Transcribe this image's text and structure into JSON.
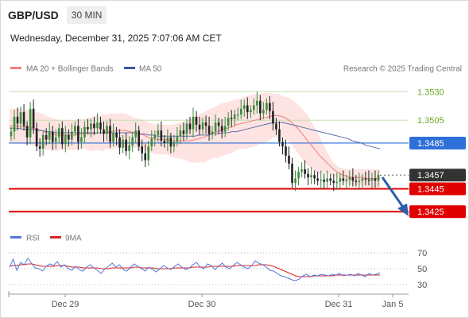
{
  "header": {
    "symbol": "GBP/USD",
    "timeframe": "30 MIN",
    "datetime": "Wednesday, December 31, 2025 7:07:06 AM CET"
  },
  "legend": {
    "ma20_label": "MA 20 + Bollinger Bands",
    "ma50_label": "MA 50",
    "source": "Research © 2025 Trading Central",
    "rsi_label": "RSI",
    "rsi_ma_label": "9MA"
  },
  "colors": {
    "green_level": "#66aa22",
    "blue_level": "#2e6fd8",
    "red_level": "#e00000",
    "current": "#333333",
    "candle_up": "#3c8c3c",
    "candle_down": "#222222",
    "bollinger_fill": "#fde3e1",
    "ma20": "#f08080",
    "ma50": "#5b6fa8",
    "rsi": "#5577dd",
    "rsi_ma": "#dd2222",
    "arrow": "#2a5fa8"
  },
  "chart_data": [
    {
      "type": "line",
      "title": "",
      "series": [
        {
          "name": "MA 20 + Bollinger Bands"
        },
        {
          "name": "MA 50"
        }
      ],
      "ohlc": {
        "start_index": 0,
        "end_index": 123,
        "note_open_close": "intraday candles read from chart"
      },
      "ylim": [
        1.3414,
        1.3542
      ],
      "levels": [
        {
          "value": "1.3530",
          "kind": "resistance"
        },
        {
          "value": "1.3505",
          "kind": "resistance"
        },
        {
          "value": "1.3485",
          "kind": "pivot"
        },
        {
          "value": "1.3457",
          "kind": "current"
        },
        {
          "value": "1.3445",
          "kind": "support"
        },
        {
          "value": "1.3425",
          "kind": "support"
        }
      ],
      "x_ticks": [
        "Dec 29",
        "Dec 30",
        "Dec 31",
        "Jan 5"
      ],
      "closes": [
        1.3495,
        1.3508,
        1.3502,
        1.3512,
        1.35,
        1.349,
        1.3515,
        1.3498,
        1.3482,
        1.348,
        1.3492,
        1.3488,
        1.3495,
        1.3486,
        1.349,
        1.3498,
        1.3484,
        1.3492,
        1.3488,
        1.3495,
        1.35,
        1.3486,
        1.349,
        1.3499,
        1.3497,
        1.3502,
        1.3498,
        1.3503,
        1.3497,
        1.3493,
        1.35,
        1.3486,
        1.3494,
        1.349,
        1.3481,
        1.3488,
        1.3478,
        1.3483,
        1.349,
        1.3496,
        1.3482,
        1.3476,
        1.347,
        1.3482,
        1.3489,
        1.3492,
        1.3496,
        1.3487,
        1.3485,
        1.349,
        1.3482,
        1.3486,
        1.3491,
        1.3496,
        1.3493,
        1.3502,
        1.3497,
        1.3508,
        1.3501,
        1.3497,
        1.3503,
        1.35,
        1.3493,
        1.3495,
        1.3503,
        1.35,
        1.3495,
        1.35,
        1.3507,
        1.3506,
        1.351,
        1.351,
        1.3515,
        1.3518,
        1.3512,
        1.3514,
        1.3518,
        1.3522,
        1.3511,
        1.3514,
        1.352,
        1.3513,
        1.3502,
        1.3497,
        1.3486,
        1.3482,
        1.3474,
        1.3467,
        1.345,
        1.3454,
        1.346,
        1.3462,
        1.3458,
        1.3455,
        1.3457,
        1.3454,
        1.3452,
        1.3453,
        1.3451,
        1.3454,
        1.3452,
        1.345,
        1.3451,
        1.3454,
        1.3452,
        1.3453,
        1.3455,
        1.3452,
        1.3451,
        1.3452,
        1.3454,
        1.3453,
        1.3452,
        1.3454,
        1.3452,
        1.3457
      ],
      "ma20": [
        1.35,
        1.35,
        1.35,
        1.3499,
        1.3499,
        1.3498,
        1.3497,
        1.3496,
        1.3494,
        1.3493,
        1.3492,
        1.3492,
        1.3492,
        1.3492,
        1.3492,
        1.3493,
        1.3493,
        1.3493,
        1.3493,
        1.3494,
        1.3494,
        1.3495,
        1.3495,
        1.3496,
        1.3496,
        1.3496,
        1.3495,
        1.3494,
        1.3493,
        1.3492,
        1.349,
        1.3489,
        1.3488,
        1.3488,
        1.3488,
        1.3487,
        1.3487,
        1.3487,
        1.3487,
        1.3487,
        1.3488,
        1.3489,
        1.349,
        1.3492,
        1.3494,
        1.3495,
        1.3497,
        1.3498,
        1.3499,
        1.3501,
        1.3502,
        1.3503,
        1.3504,
        1.3505,
        1.3506,
        1.3507,
        1.3508,
        1.3509,
        1.3509,
        1.3508,
        1.3506,
        1.3503,
        1.3499,
        1.3494,
        1.3489,
        1.3484,
        1.3479,
        1.3474,
        1.347,
        1.3466,
        1.3462,
        1.3459,
        1.3457,
        1.3456,
        1.3455,
        1.3455,
        1.3455,
        1.3454,
        1.3454,
        1.3454,
        1.3454
      ],
      "bb_upper": [
        1.3515,
        1.3515,
        1.3515,
        1.3514,
        1.3514,
        1.3513,
        1.3512,
        1.3511,
        1.3509,
        1.3507,
        1.3506,
        1.3505,
        1.3505,
        1.3505,
        1.3505,
        1.3506,
        1.3506,
        1.3507,
        1.3508,
        1.3509,
        1.351,
        1.351,
        1.3511,
        1.3511,
        1.3511,
        1.3511,
        1.3509,
        1.3507,
        1.3506,
        1.3505,
        1.3503,
        1.3502,
        1.3501,
        1.3501,
        1.3501,
        1.3501,
        1.3502,
        1.3503,
        1.3504,
        1.3506,
        1.3508,
        1.351,
        1.3512,
        1.3514,
        1.3516,
        1.3518,
        1.352,
        1.3521,
        1.3522,
        1.3523,
        1.3524,
        1.3526,
        1.3527,
        1.3528,
        1.3528,
        1.3529,
        1.3529,
        1.3528,
        1.3528,
        1.3526,
        1.3525,
        1.3523,
        1.352,
        1.3516,
        1.3511,
        1.3505,
        1.3498,
        1.349,
        1.3482,
        1.3474,
        1.3468,
        1.3464,
        1.3463,
        1.3462,
        1.3462,
        1.3462,
        1.3462,
        1.3462,
        1.3462,
        1.3462,
        1.3462
      ],
      "bb_lower": [
        1.3485,
        1.3485,
        1.3485,
        1.3484,
        1.3484,
        1.3483,
        1.3482,
        1.3481,
        1.3479,
        1.3479,
        1.3478,
        1.3479,
        1.3479,
        1.3479,
        1.3479,
        1.348,
        1.348,
        1.3479,
        1.3478,
        1.3479,
        1.3478,
        1.348,
        1.3479,
        1.3481,
        1.3481,
        1.3481,
        1.3481,
        1.3481,
        1.348,
        1.3479,
        1.3477,
        1.3476,
        1.3475,
        1.3475,
        1.3475,
        1.3473,
        1.3472,
        1.3471,
        1.347,
        1.3468,
        1.3468,
        1.3468,
        1.3468,
        1.347,
        1.3472,
        1.3472,
        1.3474,
        1.3475,
        1.3476,
        1.3479,
        1.348,
        1.348,
        1.3481,
        1.3482,
        1.3484,
        1.3485,
        1.3487,
        1.349,
        1.349,
        1.349,
        1.3487,
        1.3483,
        1.3478,
        1.3472,
        1.3467,
        1.3463,
        1.346,
        1.3458,
        1.3458,
        1.3458,
        1.3456,
        1.3454,
        1.3451,
        1.345,
        1.3448,
        1.3448,
        1.3448,
        1.3446,
        1.3446,
        1.3446,
        1.3446
      ],
      "ma50": [
        1.3498,
        1.3498,
        1.3498,
        1.3497,
        1.3497,
        1.3497,
        1.3496,
        1.3496,
        1.3495,
        1.3495,
        1.3494,
        1.3494,
        1.3494,
        1.3494,
        1.3494,
        1.3494,
        1.3494,
        1.3494,
        1.3494,
        1.3494,
        1.3494,
        1.3494,
        1.3494,
        1.3494,
        1.3494,
        1.3494,
        1.3494,
        1.3494,
        1.3493,
        1.3493,
        1.3492,
        1.3492,
        1.3491,
        1.3491,
        1.3491,
        1.3491,
        1.3491,
        1.3491,
        1.3491,
        1.3491,
        1.3491,
        1.3492,
        1.3492,
        1.3492,
        1.3493,
        1.3493,
        1.3494,
        1.3494,
        1.3495,
        1.3495,
        1.3496,
        1.3497,
        1.3498,
        1.3499,
        1.35,
        1.3501,
        1.3502,
        1.3503,
        1.3503,
        1.3503,
        1.3502,
        1.3501,
        1.35,
        1.3499,
        1.3498,
        1.3497,
        1.3496,
        1.3495,
        1.3494,
        1.3493,
        1.3492,
        1.3491,
        1.349,
        1.3489,
        1.3487,
        1.3486,
        1.3485,
        1.3483,
        1.3482,
        1.3481,
        1.348
      ]
    },
    {
      "type": "line",
      "title": "",
      "series": [
        {
          "name": "RSI"
        },
        {
          "name": "9MA"
        }
      ],
      "ylim": [
        22,
        78
      ],
      "y_ticks": [
        "70",
        "50",
        "30"
      ],
      "rsi": [
        52,
        62,
        48,
        58,
        55,
        63,
        57,
        51,
        50,
        47,
        53,
        56,
        54,
        59,
        52,
        55,
        50,
        48,
        53,
        49,
        47,
        52,
        55,
        51,
        48,
        44,
        50,
        53,
        57,
        52,
        55,
        49,
        47,
        52,
        56,
        53,
        50,
        47,
        52,
        49,
        46,
        50,
        54,
        51,
        49,
        53,
        56,
        52,
        49,
        51,
        55,
        58,
        52,
        50,
        56,
        54,
        49,
        53,
        57,
        52,
        50,
        54,
        58,
        55,
        52,
        50,
        54,
        60,
        57,
        55,
        52,
        48,
        47,
        44,
        41,
        40,
        38,
        36,
        35,
        37,
        41,
        43,
        40,
        42,
        41,
        43,
        42,
        41,
        43,
        42,
        44,
        41,
        42,
        43,
        41,
        44,
        42,
        40,
        44,
        42,
        43,
        45
      ],
      "rsi_ma": [
        53,
        54,
        54,
        55,
        55,
        56,
        56,
        55,
        54,
        53,
        53,
        53,
        53,
        54,
        54,
        54,
        53,
        52,
        52,
        52,
        51,
        51,
        51,
        51,
        51,
        50,
        50,
        50,
        51,
        51,
        51,
        51,
        51,
        51,
        52,
        52,
        51,
        51,
        51,
        51,
        50,
        50,
        50,
        50,
        50,
        51,
        51,
        51,
        51,
        51,
        52,
        52,
        52,
        52,
        52,
        53,
        53,
        53,
        53,
        53,
        53,
        53,
        54,
        54,
        54,
        54,
        54,
        54,
        55,
        55,
        55,
        54,
        53,
        51,
        49,
        47,
        45,
        43,
        41,
        40,
        40,
        40,
        40,
        41,
        41,
        41,
        41,
        41,
        41,
        42,
        42,
        42,
        42,
        42,
        42,
        42,
        42,
        42,
        42,
        42,
        42,
        42
      ]
    }
  ]
}
